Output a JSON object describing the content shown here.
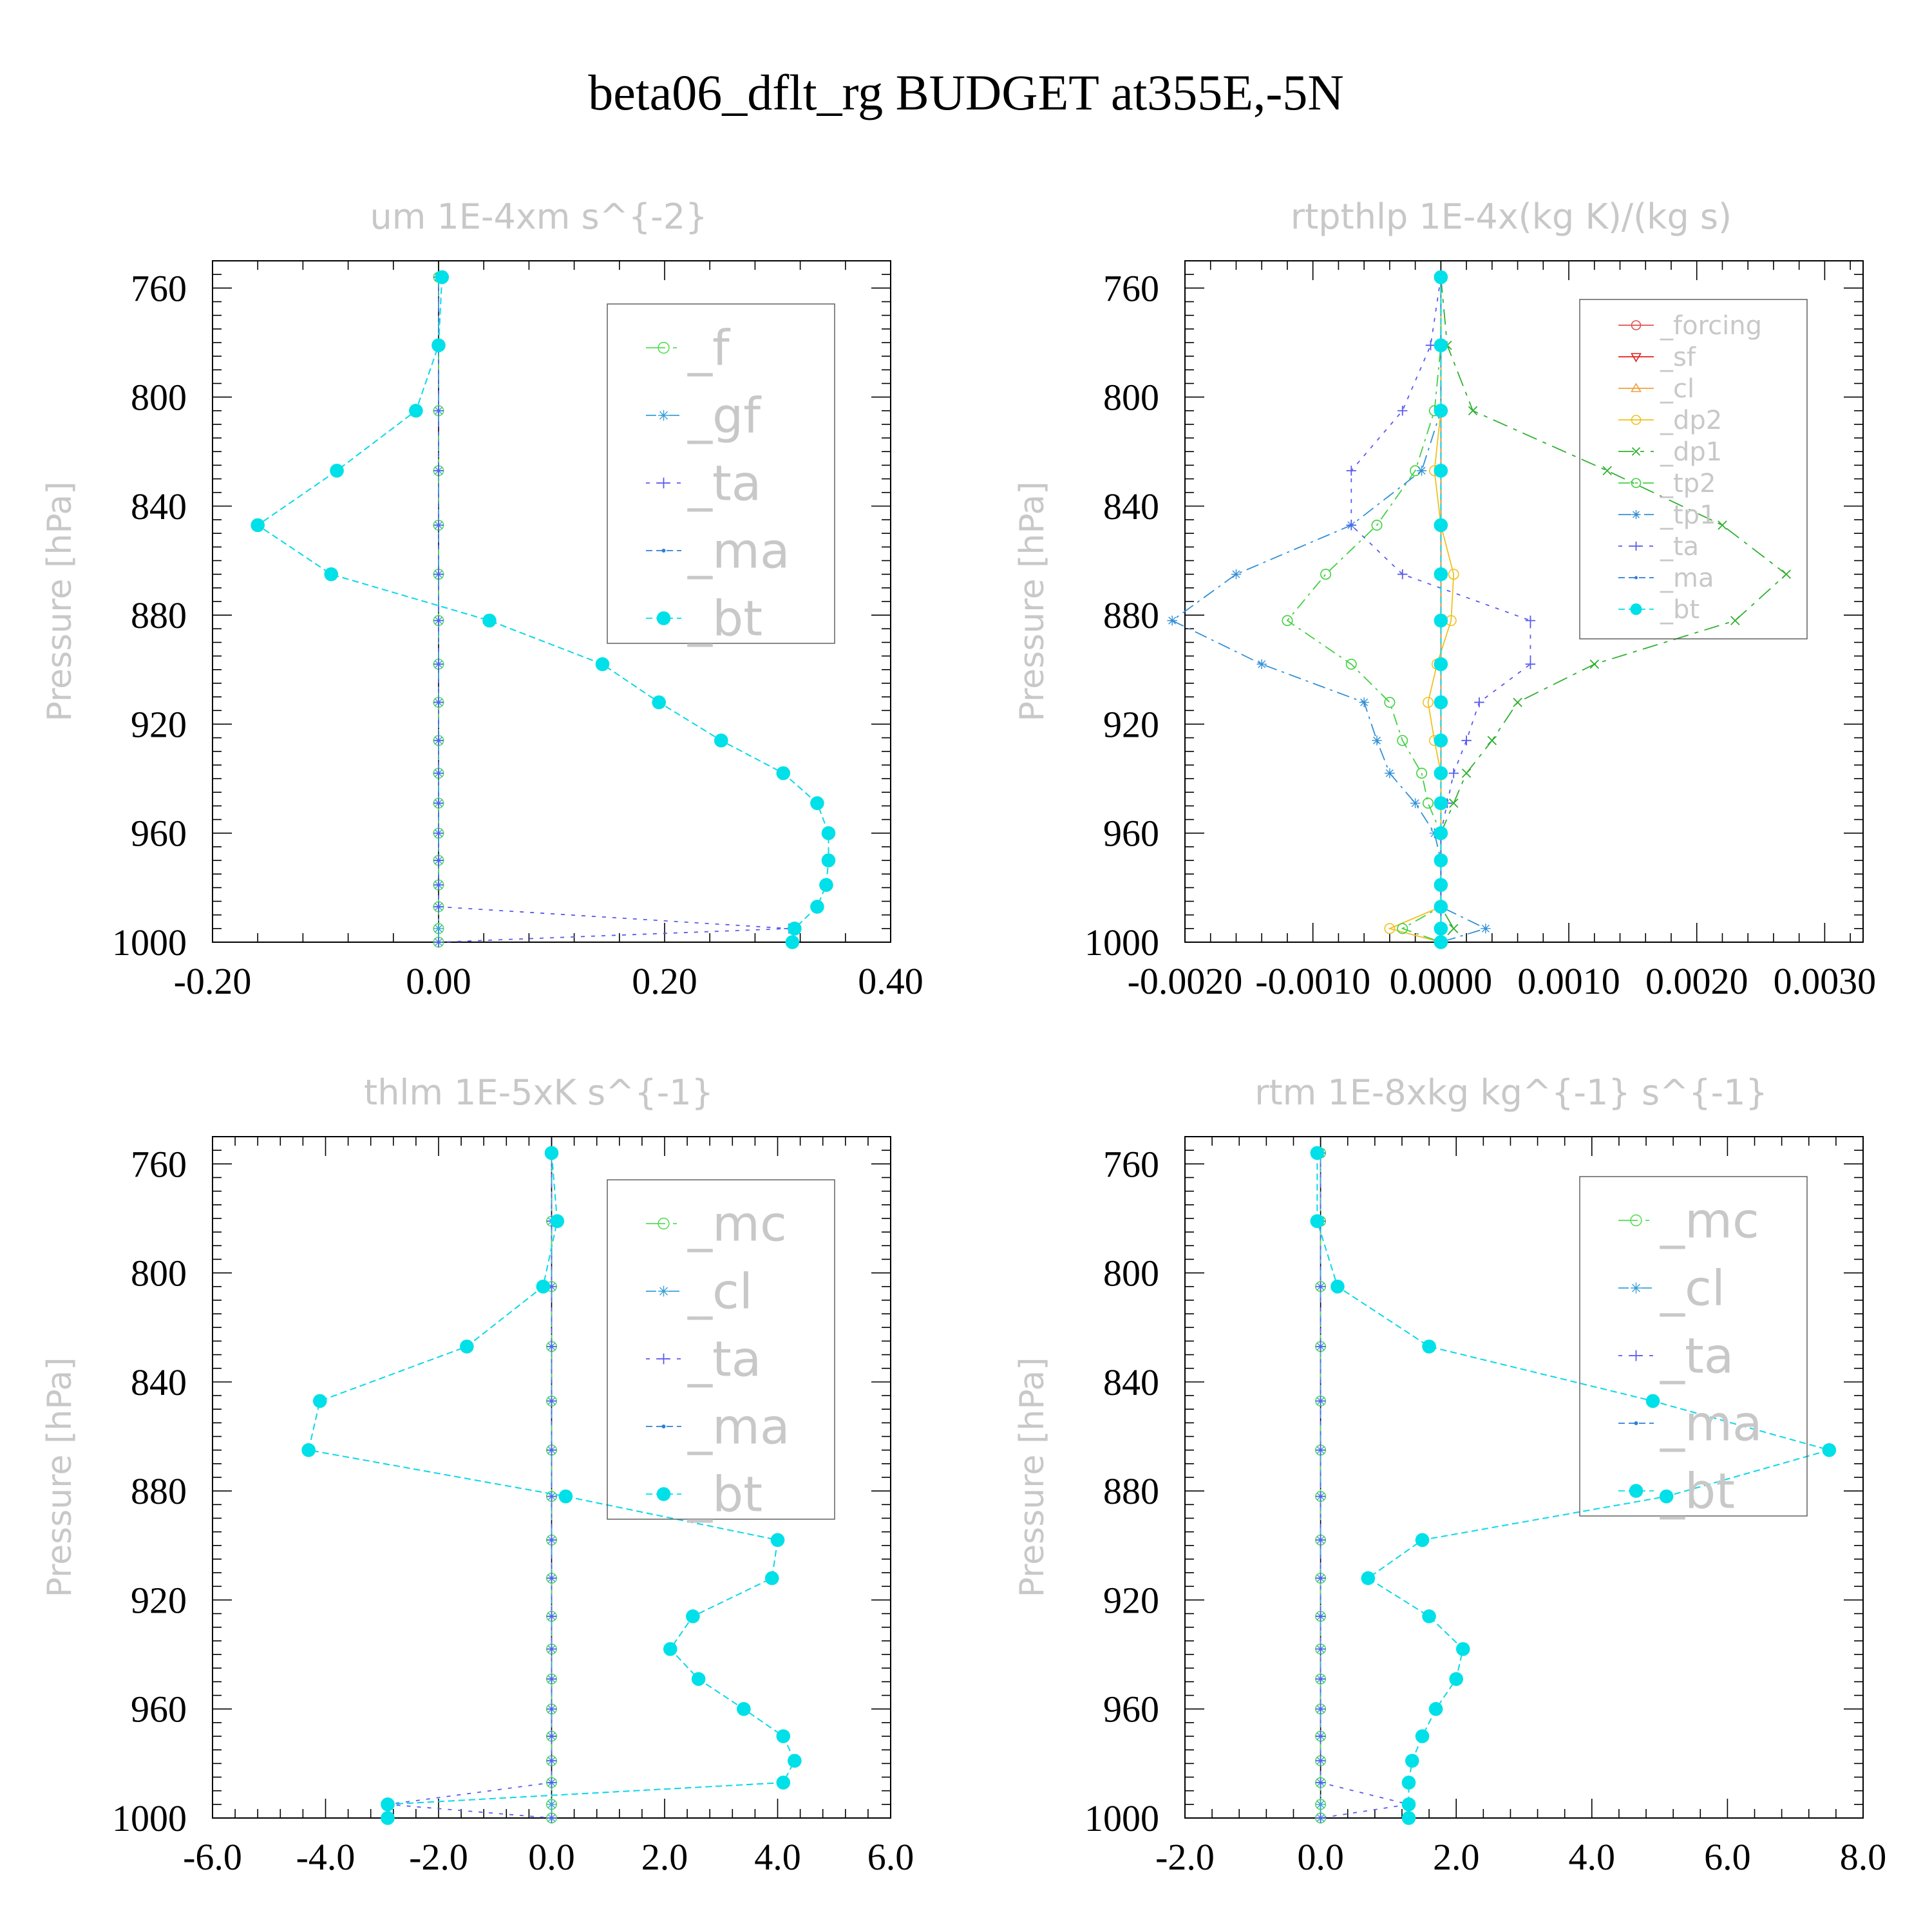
{
  "figure_title": "beta06_dflt_rg  BUDGET at355E,-5N",
  "colors": {
    "f": "#55dd55",
    "gf": "#3aa0d8",
    "ta": "#5a5af0",
    "ma": "#2f7fd8",
    "bt": "#00e0e8",
    "forcing": "#e05050",
    "sf": "#e02020",
    "cl": "#f0a040",
    "dp2": "#f0c020",
    "dp1": "#30b030",
    "tp2": "#40d040",
    "tp1": "#3090d8",
    "mc": "#55dd55",
    "cl_blue": "#3aa0d8"
  },
  "chart_data": [
    {
      "type": "line",
      "title": "um   1E-4xm s^{-2}",
      "ylabel": "Pressure [hPa]",
      "xlim": [
        -0.2,
        0.4
      ],
      "ylim": [
        1000,
        750
      ],
      "x_ticks": [
        "-0.20",
        "0.00",
        "0.20",
        "0.40"
      ],
      "x_tick_values": [
        -0.2,
        0,
        0.2,
        0.4
      ],
      "y_ticks": [
        "760",
        "800",
        "840",
        "880",
        "920",
        "960",
        "1000"
      ],
      "y_tick_values": [
        760,
        800,
        840,
        880,
        920,
        960,
        1000
      ],
      "legend_placement": "top-right",
      "legend": [
        "_f",
        "_gf",
        "_ta",
        "_ma",
        "_bt"
      ],
      "levels": [
        756,
        781,
        805,
        827,
        847,
        865,
        882,
        898,
        912,
        926,
        938,
        949,
        960,
        970,
        979,
        987,
        995,
        1000
      ],
      "series": [
        {
          "name": "_f",
          "key": "f",
          "values": [
            0,
            0,
            0,
            0,
            0,
            0,
            0,
            0,
            0,
            0,
            0,
            0,
            0,
            0,
            0,
            0,
            0,
            0
          ]
        },
        {
          "name": "_gf",
          "key": "gf",
          "values": [
            0,
            0,
            0,
            0,
            0,
            0,
            0,
            0,
            0,
            0,
            0,
            0,
            0,
            0,
            0,
            0,
            0,
            0
          ]
        },
        {
          "name": "_ta",
          "key": "ta",
          "values": [
            0,
            0,
            0,
            0,
            0,
            0,
            0,
            0,
            0,
            0,
            0,
            0,
            0,
            0,
            0,
            0,
            0.31,
            0
          ]
        },
        {
          "name": "_ma",
          "key": "ma",
          "values": [
            0.003,
            0.0,
            -0.02,
            -0.09,
            -0.16,
            -0.095,
            0.045,
            0.145,
            0.195,
            0.25,
            0.305,
            0.335,
            0.345,
            0.345,
            0.343,
            0.335,
            0.315,
            0.313
          ]
        },
        {
          "name": "_bt",
          "key": "bt",
          "values": [
            0.003,
            0.0,
            -0.02,
            -0.09,
            -0.16,
            -0.095,
            0.045,
            0.145,
            0.195,
            0.25,
            0.305,
            0.335,
            0.345,
            0.345,
            0.343,
            0.335,
            0.315,
            0.313
          ]
        }
      ]
    },
    {
      "type": "line",
      "title": "rtpthlp   1E-4x(kg K)/(kg s)",
      "ylabel": "Pressure [hPa]",
      "xlim": [
        -0.002,
        0.0033
      ],
      "ylim": [
        1000,
        750
      ],
      "x_ticks": [
        "-0.0020",
        "-0.0010",
        "0.0000",
        "0.0010",
        "0.0020",
        "0.0030"
      ],
      "x_tick_values": [
        -0.002,
        -0.001,
        0,
        0.001,
        0.002,
        0.003
      ],
      "y_ticks": [
        "760",
        "800",
        "840",
        "880",
        "920",
        "960",
        "1000"
      ],
      "y_tick_values": [
        760,
        800,
        840,
        880,
        920,
        960,
        1000
      ],
      "legend_placement": "top-right",
      "legend": [
        "_forcing",
        "_sf",
        "_cl",
        "_dp2",
        "_dp1",
        "_tp2",
        "_tp1",
        "_ta",
        "_ma",
        "_bt"
      ],
      "levels": [
        756,
        781,
        805,
        827,
        847,
        865,
        882,
        898,
        912,
        926,
        938,
        949,
        960,
        970,
        979,
        987,
        995,
        1000
      ],
      "series": [
        {
          "name": "_forcing",
          "key": "forcing",
          "values": [
            0,
            0,
            0,
            0,
            0,
            0,
            0,
            0,
            0,
            0,
            0,
            0,
            0,
            0,
            0,
            0,
            0,
            0
          ]
        },
        {
          "name": "_sf",
          "key": "sf",
          "values": [
            0,
            0,
            0,
            0,
            0,
            0,
            0,
            0,
            0,
            0,
            0,
            0,
            0,
            0,
            0,
            0,
            0,
            0
          ]
        },
        {
          "name": "_cl",
          "key": "cl",
          "values": [
            0,
            0,
            0,
            0,
            0,
            0,
            0,
            0,
            0,
            0,
            0,
            0,
            0,
            0,
            0,
            0,
            0,
            0
          ]
        },
        {
          "name": "_dp2",
          "key": "dp2",
          "values": [
            0,
            0,
            0,
            -5e-05,
            0,
            0.0001,
            8e-05,
            -3e-05,
            -0.0001,
            -5e-05,
            0,
            0,
            0,
            0,
            0,
            0,
            -0.0004,
            0
          ]
        },
        {
          "name": "_dp1",
          "key": "dp1",
          "values": [
            0,
            5e-05,
            0.00025,
            0.0013,
            0.0022,
            0.0027,
            0.0023,
            0.0012,
            0.0006,
            0.0004,
            0.0002,
            0.0001,
            0,
            0,
            0,
            0,
            0.0001,
            0
          ]
        },
        {
          "name": "_tp2",
          "key": "tp2",
          "values": [
            0,
            0,
            -5e-05,
            -0.0002,
            -0.0005,
            -0.0009,
            -0.0012,
            -0.0007,
            -0.0004,
            -0.0003,
            -0.00015,
            -0.0001,
            0,
            0,
            0,
            0,
            -0.0003,
            0
          ]
        },
        {
          "name": "_tp1",
          "key": "tp1",
          "values": [
            0,
            0,
            0,
            -0.00015,
            -0.0007,
            -0.0016,
            -0.0021,
            -0.0014,
            -0.0006,
            -0.0005,
            -0.0004,
            -0.0002,
            -5e-05,
            0,
            0,
            0,
            0.00035,
            0
          ]
        },
        {
          "name": "_ta",
          "key": "ta",
          "values": [
            0,
            -8e-05,
            -0.0003,
            -0.0007,
            -0.0007,
            -0.0003,
            0.0007,
            0.0007,
            0.0003,
            0.0002,
            0.0001,
            5e-05,
            0,
            0,
            0,
            0,
            0,
            0
          ]
        },
        {
          "name": "_ma",
          "key": "ma",
          "values": [
            0,
            0,
            0,
            0,
            0,
            0,
            0,
            0,
            0,
            0,
            0,
            0,
            0,
            0,
            0,
            0,
            0,
            0
          ]
        },
        {
          "name": "_bt",
          "key": "bt",
          "values": [
            0,
            0,
            0,
            0,
            0,
            0,
            0,
            0,
            0,
            0,
            0,
            0,
            0,
            0,
            0,
            0,
            0,
            0
          ]
        }
      ]
    },
    {
      "type": "line",
      "title": "thlm   1E-5xK s^{-1}",
      "ylabel": "Pressure [hPa]",
      "xlim": [
        -6,
        6
      ],
      "ylim": [
        1000,
        750
      ],
      "x_ticks": [
        "-6.0",
        "-4.0",
        "-2.0",
        "0.0",
        "2.0",
        "4.0",
        "6.0"
      ],
      "x_tick_values": [
        -6,
        -4,
        -2,
        0,
        2,
        4,
        6
      ],
      "y_ticks": [
        "760",
        "800",
        "840",
        "880",
        "920",
        "960",
        "1000"
      ],
      "y_tick_values": [
        760,
        800,
        840,
        880,
        920,
        960,
        1000
      ],
      "legend_placement": "top-right",
      "legend": [
        "_mc",
        "_cl",
        "_ta",
        "_ma",
        "_bt"
      ],
      "levels": [
        756,
        781,
        805,
        827,
        847,
        865,
        882,
        898,
        912,
        926,
        938,
        949,
        960,
        970,
        979,
        987,
        995,
        1000
      ],
      "series": [
        {
          "name": "_mc",
          "key": "mc",
          "values": [
            0,
            0,
            0,
            0,
            0,
            0,
            0,
            0,
            0,
            0,
            0,
            0,
            0,
            0,
            0,
            0,
            0,
            0
          ]
        },
        {
          "name": "_cl",
          "key": "cl_blue",
          "values": [
            0,
            0,
            0,
            0,
            0,
            0,
            0,
            0,
            0,
            0,
            0,
            0,
            0,
            0,
            0,
            0,
            0,
            0
          ]
        },
        {
          "name": "_ta",
          "key": "ta",
          "values": [
            0,
            0,
            0,
            0,
            0,
            0,
            0,
            0,
            0,
            0,
            0,
            0,
            0,
            0,
            0,
            0,
            -2.9,
            0
          ]
        },
        {
          "name": "_ma",
          "key": "ma",
          "values": [
            0,
            0.1,
            -0.15,
            -1.5,
            -4.1,
            -4.3,
            0.25,
            4.0,
            3.9,
            2.5,
            2.1,
            2.6,
            3.4,
            4.1,
            4.3,
            4.1,
            -2.9,
            -2.9
          ]
        },
        {
          "name": "_bt",
          "key": "bt",
          "values": [
            0,
            0.1,
            -0.15,
            -1.5,
            -4.1,
            -4.3,
            0.25,
            4.0,
            3.9,
            2.5,
            2.1,
            2.6,
            3.4,
            4.1,
            4.3,
            4.1,
            -2.9,
            -2.9
          ]
        }
      ]
    },
    {
      "type": "line",
      "title": "rtm   1E-8xkg kg^{-1} s^{-1}",
      "ylabel": "Pressure [hPa]",
      "xlim": [
        -2,
        8
      ],
      "ylim": [
        1000,
        750
      ],
      "x_ticks": [
        "-2.0",
        "0.0",
        "2.0",
        "4.0",
        "6.0",
        "8.0"
      ],
      "x_tick_values": [
        -2,
        0,
        2,
        4,
        6,
        8
      ],
      "y_ticks": [
        "760",
        "800",
        "840",
        "880",
        "920",
        "960",
        "1000"
      ],
      "y_tick_values": [
        760,
        800,
        840,
        880,
        920,
        960,
        1000
      ],
      "legend_placement": "top-right",
      "legend": [
        "_mc",
        "_cl",
        "_ta",
        "_ma",
        "_bt"
      ],
      "levels": [
        756,
        781,
        805,
        827,
        847,
        865,
        882,
        898,
        912,
        926,
        938,
        949,
        960,
        970,
        979,
        987,
        995,
        1000
      ],
      "series": [
        {
          "name": "_mc",
          "key": "mc",
          "values": [
            0,
            0,
            0,
            0,
            0,
            0,
            0,
            0,
            0,
            0,
            0,
            0,
            0,
            0,
            0,
            0,
            0,
            0
          ]
        },
        {
          "name": "_cl",
          "key": "cl_blue",
          "values": [
            0,
            0,
            0,
            0,
            0,
            0,
            0,
            0,
            0,
            0,
            0,
            0,
            0,
            0,
            0,
            0,
            0,
            0
          ]
        },
        {
          "name": "_ta",
          "key": "ta",
          "values": [
            0,
            0,
            0,
            0,
            0,
            0,
            0,
            0,
            0,
            0,
            0,
            0,
            0,
            0,
            0,
            0,
            1.3,
            0
          ]
        },
        {
          "name": "_ma",
          "key": "ma",
          "values": [
            -0.05,
            -0.05,
            0.25,
            1.6,
            4.9,
            7.5,
            5.1,
            1.5,
            0.7,
            1.6,
            2.1,
            2.0,
            1.7,
            1.5,
            1.35,
            1.3,
            1.3,
            1.3
          ]
        },
        {
          "name": "_bt",
          "key": "bt",
          "values": [
            -0.05,
            -0.05,
            0.25,
            1.6,
            4.9,
            7.5,
            5.1,
            1.5,
            0.7,
            1.6,
            2.1,
            2.0,
            1.7,
            1.5,
            1.35,
            1.3,
            1.3,
            1.3
          ]
        }
      ]
    }
  ]
}
